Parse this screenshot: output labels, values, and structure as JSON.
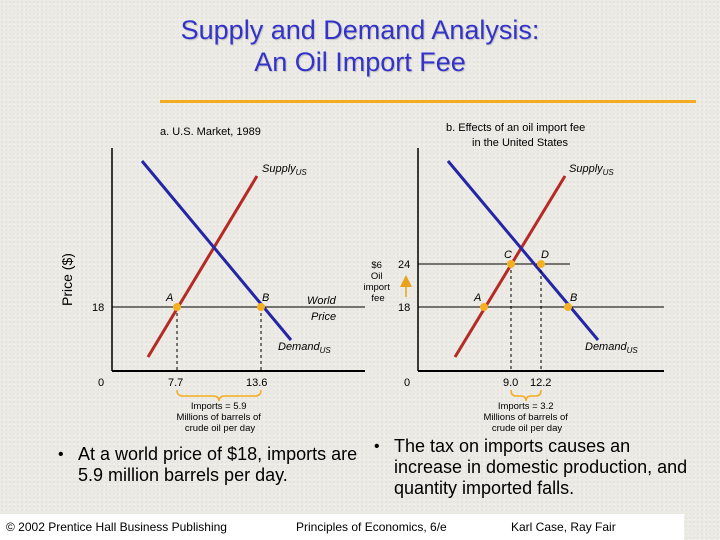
{
  "title": {
    "line1": "Supply and Demand Analysis:",
    "line2": "An Oil Import Fee"
  },
  "panel_a": {
    "title": "a.  U.S. Market, 1989",
    "y_axis_label": "Price ($)",
    "origin_label": "0",
    "world_price_label": "18",
    "supply_label": "Supply",
    "supply_sub": "US",
    "demand_label": "Demand",
    "demand_sub": "US",
    "world_price_line_label": [
      "World",
      "Price"
    ],
    "point_a": "A",
    "point_b": "B",
    "x_label_a": "7.7",
    "x_label_b": "13.6",
    "caption": [
      "Imports = 5.9",
      "Millions of barrels of",
      "crude oil per day"
    ]
  },
  "panel_b": {
    "title": [
      "b.  Effects of an oil import fee",
      "in the United States"
    ],
    "origin_label": "0",
    "price_high": "24",
    "price_low": "18",
    "fee_label": [
      "$6",
      "Oil",
      "import",
      "fee"
    ],
    "supply_label": "Supply",
    "supply_sub": "US",
    "demand_label": "Demand",
    "demand_sub": "US",
    "point_a": "A",
    "point_b": "B",
    "point_c": "C",
    "point_d": "D",
    "x_label_c": "9.0",
    "x_label_d": "12.2",
    "caption": [
      "Imports = 3.2",
      "Millions of barrels of",
      "crude oil per day"
    ]
  },
  "bullets": {
    "left": "At a world price of $18, imports are 5.9 million barrels per day.",
    "right": "The tax on imports causes an increase in domestic production, and quantity imported falls."
  },
  "footer": {
    "left": "© 2002 Prentice Hall Business Publishing",
    "center": "Principles of Economics, 6/e",
    "right": "Karl Case, Ray Fair"
  },
  "colors": {
    "title": "#3333cc",
    "rule": "#f3ac1f",
    "supply": "#b52a25",
    "demand": "#2426a6",
    "point": "#f5b021",
    "arrow": "#e8a21c"
  }
}
